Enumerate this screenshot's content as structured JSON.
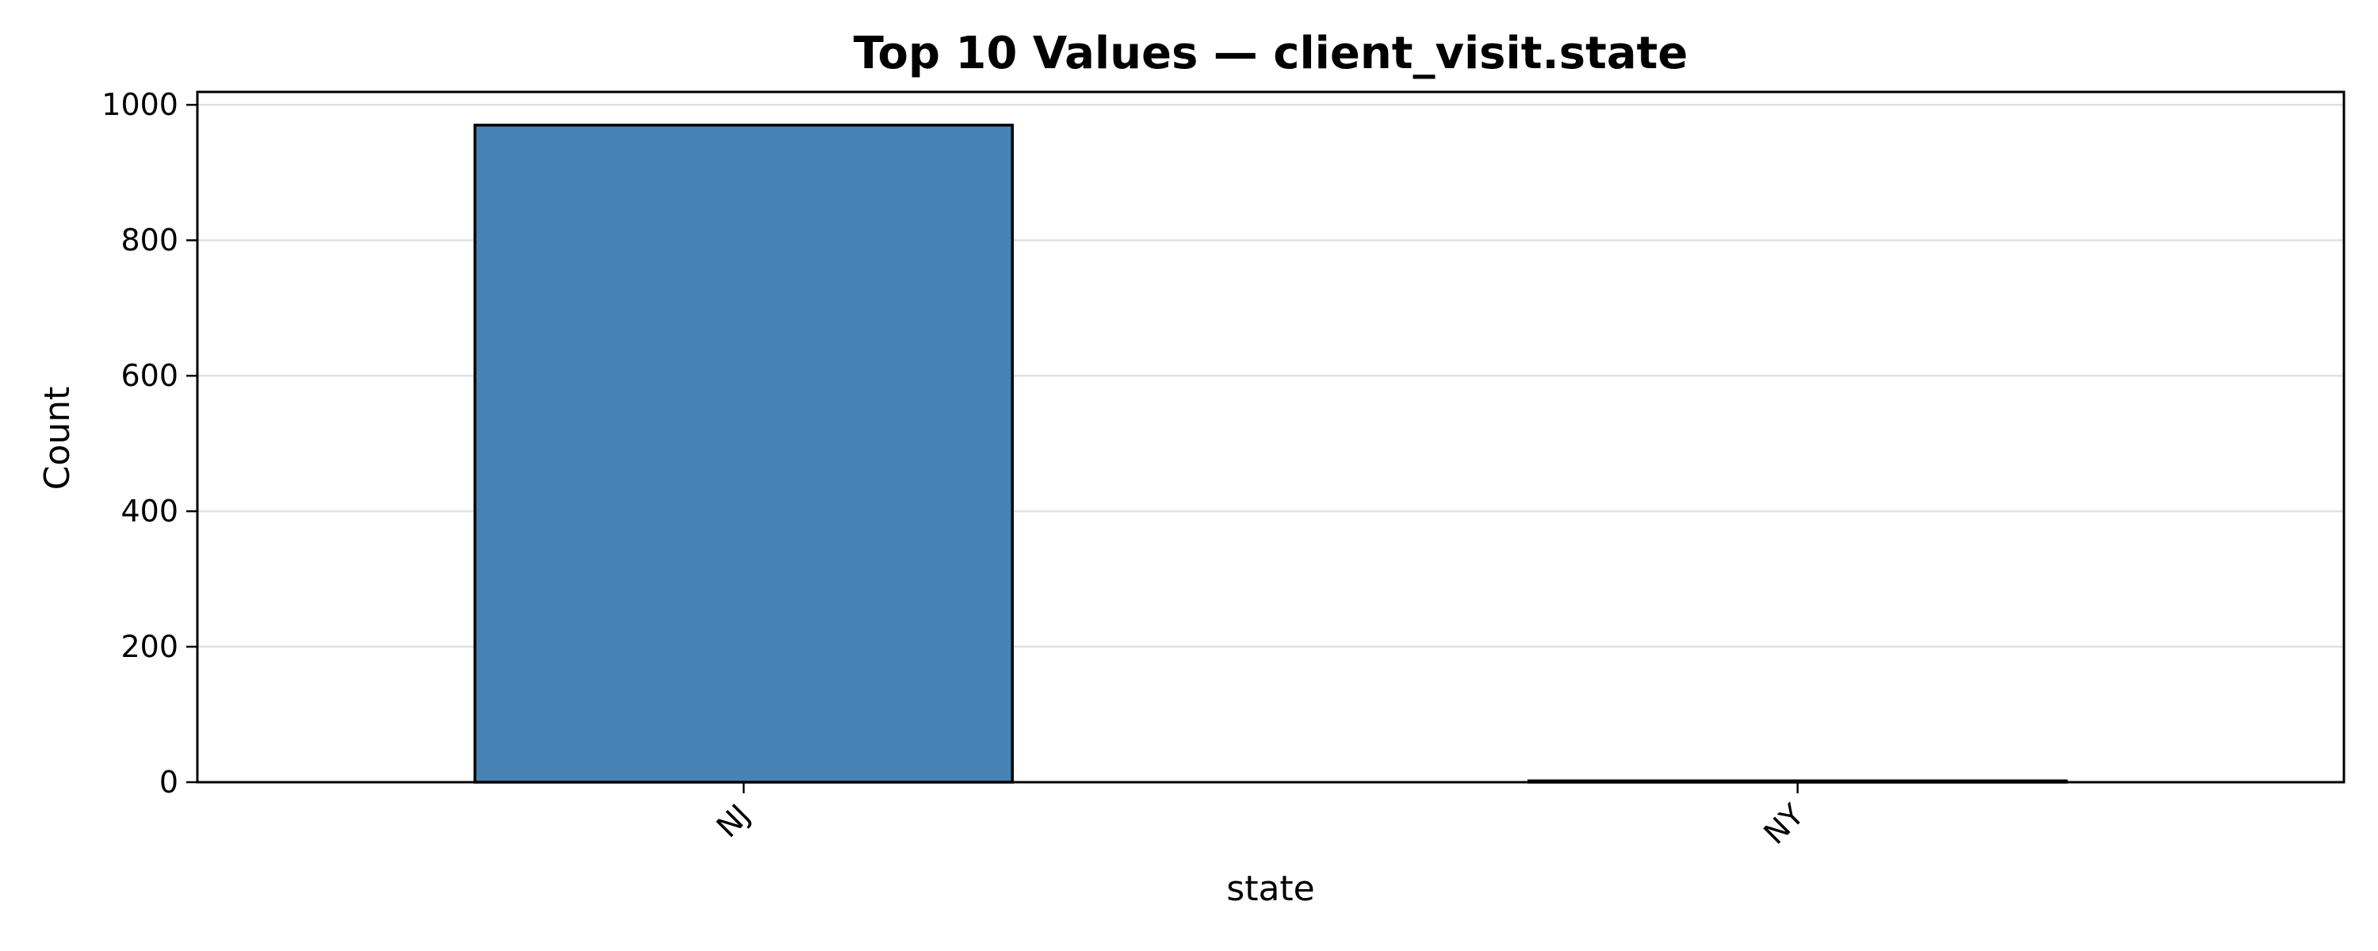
{
  "chart_data": {
    "type": "bar",
    "title": "Top 10 Values — client_visit.state",
    "xlabel": "state",
    "ylabel": "Count",
    "categories": [
      "NJ",
      "NY"
    ],
    "values": [
      970,
      2
    ],
    "ylim": [
      0,
      1019
    ],
    "yticks": [
      0,
      200,
      400,
      600,
      800,
      1000
    ],
    "grid": "horizontal",
    "legend": "none",
    "bar_color": "#4682b4",
    "edge_color": "#000000"
  }
}
